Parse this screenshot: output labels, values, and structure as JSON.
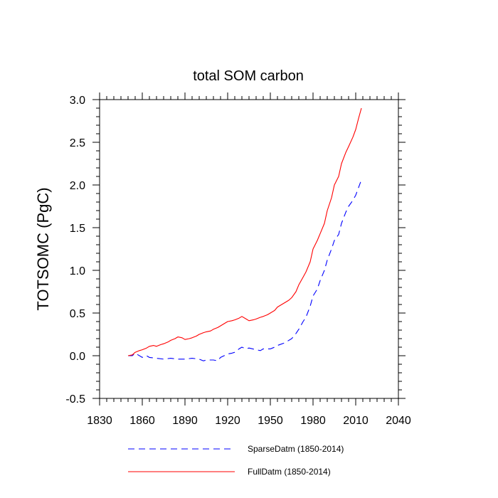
{
  "chart_data": {
    "type": "line",
    "title": "total SOM carbon",
    "xlabel": "",
    "ylabel": "TOTSOMC  (PgC)",
    "xlim": [
      1830,
      2040
    ],
    "ylim": [
      -0.5,
      3.0
    ],
    "x_ticks": [
      1830,
      1860,
      1890,
      1920,
      1950,
      1980,
      2010,
      2040
    ],
    "x_tick_labels": [
      "1830",
      "1860",
      "1890",
      "1920",
      "1950",
      "1980",
      "2010",
      "2040"
    ],
    "y_ticks": [
      -0.5,
      0.0,
      0.5,
      1.0,
      1.5,
      2.0,
      2.5,
      3.0
    ],
    "y_tick_labels": [
      "-0.5",
      "0.0",
      "0.5",
      "1.0",
      "1.5",
      "2.0",
      "2.5",
      "3.0"
    ],
    "grid": false,
    "legend_position": "bottom",
    "series": [
      {
        "name": "SparseDatm (1850-2014)",
        "color": "#0000ff",
        "style": "dashed",
        "x": [
          1850,
          1853,
          1855,
          1857,
          1860,
          1863,
          1865,
          1870,
          1875,
          1880,
          1885,
          1890,
          1895,
          1900,
          1903,
          1905,
          1910,
          1913,
          1915,
          1920,
          1923,
          1925,
          1928,
          1930,
          1933,
          1935,
          1940,
          1943,
          1945,
          1950,
          1953,
          1955,
          1960,
          1965,
          1968,
          1970,
          1973,
          1975,
          1978,
          1980,
          1983,
          1985,
          1988,
          1990,
          1993,
          1995,
          1998,
          2000,
          2003,
          2005,
          2008,
          2010,
          2012,
          2014
        ],
        "values": [
          0.0,
          0.0,
          0.03,
          0.01,
          -0.02,
          0.0,
          -0.02,
          -0.03,
          -0.04,
          -0.03,
          -0.04,
          -0.04,
          -0.03,
          -0.04,
          -0.06,
          -0.05,
          -0.05,
          -0.06,
          -0.02,
          0.02,
          0.03,
          0.04,
          0.08,
          0.1,
          0.08,
          0.09,
          0.07,
          0.06,
          0.08,
          0.08,
          0.1,
          0.12,
          0.15,
          0.2,
          0.26,
          0.31,
          0.4,
          0.45,
          0.58,
          0.7,
          0.78,
          0.88,
          1.0,
          1.12,
          1.25,
          1.35,
          1.42,
          1.55,
          1.68,
          1.75,
          1.82,
          1.88,
          1.97,
          2.06
        ]
      },
      {
        "name": "FullDatm (1850-2014)",
        "color": "#ff0000",
        "style": "solid",
        "x": [
          1850,
          1853,
          1855,
          1858,
          1860,
          1863,
          1865,
          1868,
          1870,
          1873,
          1875,
          1878,
          1880,
          1883,
          1885,
          1888,
          1890,
          1893,
          1895,
          1898,
          1900,
          1903,
          1905,
          1908,
          1910,
          1913,
          1915,
          1918,
          1920,
          1923,
          1925,
          1928,
          1930,
          1933,
          1935,
          1938,
          1940,
          1943,
          1945,
          1948,
          1950,
          1953,
          1955,
          1958,
          1960,
          1963,
          1965,
          1968,
          1970,
          1973,
          1975,
          1978,
          1980,
          1983,
          1985,
          1988,
          1990,
          1993,
          1995,
          1998,
          2000,
          2003,
          2005,
          2008,
          2010,
          2012,
          2014
        ],
        "values": [
          0.0,
          0.01,
          0.04,
          0.06,
          0.07,
          0.09,
          0.11,
          0.12,
          0.11,
          0.13,
          0.14,
          0.16,
          0.18,
          0.2,
          0.22,
          0.21,
          0.19,
          0.2,
          0.21,
          0.23,
          0.25,
          0.27,
          0.28,
          0.29,
          0.31,
          0.33,
          0.35,
          0.38,
          0.4,
          0.41,
          0.42,
          0.44,
          0.46,
          0.43,
          0.41,
          0.42,
          0.43,
          0.45,
          0.46,
          0.48,
          0.5,
          0.53,
          0.57,
          0.6,
          0.62,
          0.65,
          0.68,
          0.75,
          0.83,
          0.92,
          0.98,
          1.1,
          1.25,
          1.35,
          1.43,
          1.55,
          1.7,
          1.85,
          2.0,
          2.1,
          2.25,
          2.38,
          2.45,
          2.56,
          2.65,
          2.78,
          2.9
        ]
      }
    ]
  }
}
